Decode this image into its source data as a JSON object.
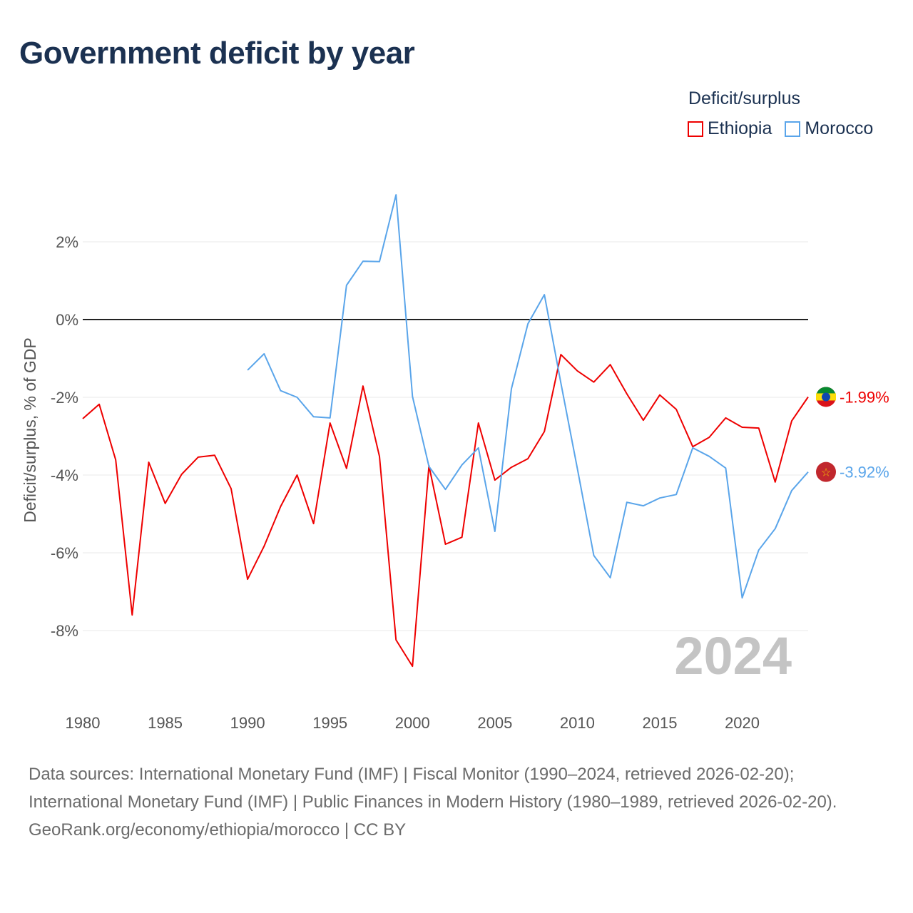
{
  "title": "Government deficit by year",
  "legend": {
    "title": "Deficit/surplus"
  },
  "footer": {
    "sources": "Data sources: International Monetary Fund (IMF) | Fiscal Monitor (1990–2024, retrieved 2026-02-20); International Monetary Fund (IMF) | Public Finances in Modern History (1980–1989, retrieved 2026-02-20).",
    "credit": "GeoRank.org/economy/ethiopia/morocco | CC BY"
  },
  "chart_data": {
    "type": "line",
    "title": "Government deficit by year",
    "xlabel": "",
    "ylabel": "Deficit/surplus, % of GDP",
    "xlim": [
      1980,
      2024
    ],
    "ylim": [
      -10,
      3.5
    ],
    "yticks": [
      2,
      0,
      -2,
      -4,
      -6,
      -8
    ],
    "ytick_labels": [
      "2%",
      "0%",
      "-2%",
      "-4%",
      "-6%",
      "-8%"
    ],
    "xticks": [
      1980,
      1985,
      1990,
      1995,
      2000,
      2005,
      2010,
      2015,
      2020
    ],
    "xtick_labels": [
      "1980",
      "1985",
      "1990",
      "1995",
      "2000",
      "2005",
      "2010",
      "2015",
      "2020"
    ],
    "grid": true,
    "legend_position": "top-right",
    "watermark_year": "2024",
    "series": [
      {
        "name": "Ethiopia",
        "color": "#ee0000",
        "end_label": "-1.99%",
        "x": [
          1980,
          1981,
          1982,
          1983,
          1984,
          1985,
          1986,
          1987,
          1988,
          1989,
          1990,
          1991,
          1992,
          1993,
          1994,
          1995,
          1996,
          1997,
          1998,
          1999,
          2000,
          2001,
          2002,
          2003,
          2004,
          2005,
          2006,
          2007,
          2008,
          2009,
          2010,
          2011,
          2012,
          2013,
          2014,
          2015,
          2016,
          2017,
          2018,
          2019,
          2020,
          2021,
          2022,
          2023,
          2024
        ],
        "values": [
          -2.55,
          -2.18,
          -3.61,
          -7.6,
          -3.67,
          -4.73,
          -3.98,
          -3.54,
          -3.49,
          -4.35,
          -6.68,
          -5.83,
          -4.81,
          -4.0,
          -5.25,
          -2.66,
          -3.83,
          -1.71,
          -3.52,
          -8.24,
          -8.92,
          -3.76,
          -5.78,
          -5.6,
          -2.66,
          -4.13,
          -3.8,
          -3.58,
          -2.88,
          -0.9,
          -1.32,
          -1.61,
          -1.16,
          -1.91,
          -2.59,
          -1.94,
          -2.31,
          -3.27,
          -3.03,
          -2.53,
          -2.77,
          -2.79,
          -4.18,
          -2.61,
          -1.99
        ]
      },
      {
        "name": "Morocco",
        "color": "#5aa5ea",
        "end_label": "-3.92%",
        "x": [
          1990,
          1991,
          1992,
          1993,
          1994,
          1995,
          1996,
          1997,
          1998,
          1999,
          2000,
          2001,
          2002,
          2003,
          2004,
          2005,
          2006,
          2007,
          2008,
          2009,
          2010,
          2011,
          2012,
          2013,
          2014,
          2015,
          2016,
          2017,
          2018,
          2019,
          2020,
          2021,
          2022,
          2023,
          2024
        ],
        "values": [
          -1.3,
          -0.88,
          -1.83,
          -2.0,
          -2.5,
          -2.53,
          0.88,
          1.5,
          1.49,
          3.21,
          -1.98,
          -3.78,
          -4.37,
          -3.74,
          -3.3,
          -5.45,
          -1.78,
          -0.11,
          0.64,
          -1.63,
          -3.83,
          -6.07,
          -6.64,
          -4.7,
          -4.79,
          -4.59,
          -4.5,
          -3.3,
          -3.52,
          -3.82,
          -7.16,
          -5.93,
          -5.38,
          -4.4,
          -3.92
        ]
      }
    ]
  }
}
